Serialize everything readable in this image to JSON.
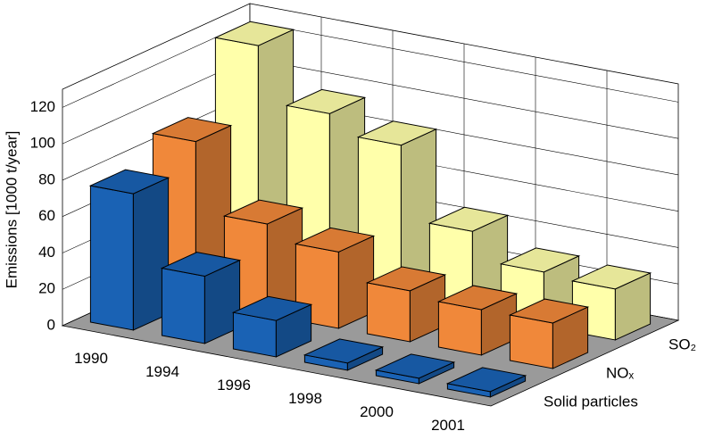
{
  "chart_data": {
    "type": "bar3d",
    "y_label": "Emissions [1000 t/year]",
    "categories": [
      "1990",
      "1994",
      "1996",
      "1998",
      "2000",
      "2001"
    ],
    "series": [
      {
        "name": "Solid particles",
        "color": "#1a62b4",
        "values": [
          75,
          37,
          20,
          4,
          3,
          3
        ]
      },
      {
        "name": "NOₓ",
        "color": "#f0883a",
        "values": [
          88,
          50,
          42,
          28,
          25,
          25
        ]
      },
      {
        "name": "SO₂",
        "color": "#ffffaa",
        "values": [
          125,
          95,
          85,
          45,
          30,
          28
        ]
      }
    ],
    "ylim": [
      0,
      130
    ],
    "yticks": [
      0,
      20,
      40,
      60,
      80,
      100,
      120
    ],
    "grid": true
  }
}
